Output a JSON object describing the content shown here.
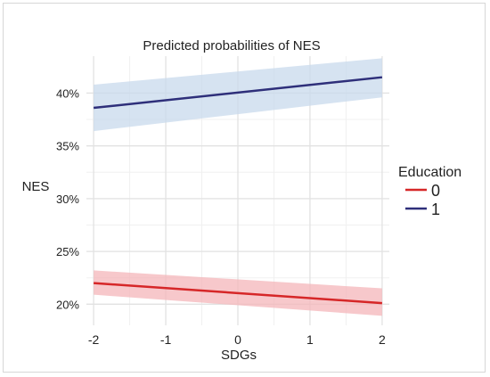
{
  "chart_data": {
    "type": "line",
    "title": "Predicted probabilities of NES",
    "xlabel": "SDGs",
    "ylabel": "NES",
    "x_ticks": [
      -2,
      -1,
      0,
      1,
      2
    ],
    "x_tick_labels": [
      "-2",
      "-1",
      "0",
      "1",
      "2"
    ],
    "y_ticks": [
      0.2,
      0.25,
      0.3,
      0.35,
      0.4
    ],
    "y_tick_labels": [
      "20%",
      "25%",
      "30%",
      "35%",
      "40%"
    ],
    "xlim": [
      -2.1,
      2.1
    ],
    "ylim": [
      0.18,
      0.435
    ],
    "grid": true,
    "legend": {
      "title": "Education",
      "position": "right"
    },
    "series": [
      {
        "name": "0",
        "color": "#d62728",
        "band_color": "#f4b6b9",
        "x": [
          -2,
          2
        ],
        "y": [
          0.22,
          0.201
        ],
        "ci_lower": [
          0.209,
          0.189
        ],
        "ci_upper": [
          0.232,
          0.215
        ]
      },
      {
        "name": "1",
        "color": "#2e2f7a",
        "band_color": "#c8d9ec",
        "x": [
          -2,
          2
        ],
        "y": [
          0.386,
          0.415
        ],
        "ci_lower": [
          0.364,
          0.396
        ],
        "ci_upper": [
          0.408,
          0.433
        ]
      }
    ]
  }
}
